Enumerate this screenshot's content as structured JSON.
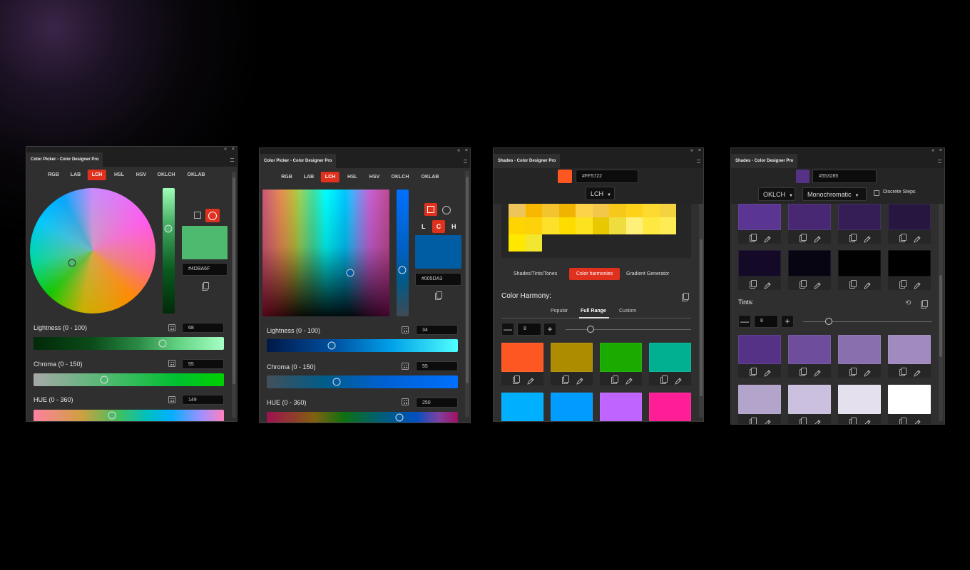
{
  "window_controls": {
    "collapse": "«",
    "close": "×"
  },
  "panel1": {
    "title": "Color Picker - Color Designer Pro",
    "tabs": [
      "RGB",
      "LAB",
      "LCH",
      "HSL",
      "HSV",
      "OKLCH",
      "OKLAB"
    ],
    "active_tab": "LCH",
    "shape_mode": "circle",
    "color_hex": "#4DBA6F",
    "hex_value": "#4DBA6F",
    "sliders": [
      {
        "label": "Lightness (0 - 100)",
        "value": "68"
      },
      {
        "label": "Chroma (0 - 150)",
        "value": "55"
      },
      {
        "label": "HUE (0 - 360)",
        "value": "149"
      }
    ]
  },
  "panel2": {
    "title": "Color Picker - Color Designer Pro",
    "tabs": [
      "RGB",
      "LAB",
      "LCH",
      "HSL",
      "HSV",
      "OKLCH",
      "OKLAB"
    ],
    "active_tab": "LCH",
    "shape_mode": "square",
    "axes": [
      "L",
      "C",
      "H"
    ],
    "active_axis": "C",
    "color_hex": "#005DA3",
    "hex_value": "#005DA3",
    "sliders": [
      {
        "label": "Lightness (0 - 100)",
        "value": "34"
      },
      {
        "label": "Chroma (0 - 150)",
        "value": "55"
      },
      {
        "label": "HUE (0 - 360)",
        "value": "250"
      }
    ]
  },
  "panel3": {
    "title": "Shades - Color Designer Pro",
    "base_color": "#FF5722",
    "hex_value": "#FF5722",
    "mode": "LCH",
    "palette_grid": [
      [
        "#eec55a",
        "#f9b800",
        "#f3c330",
        "#f0b400",
        "#fdd34a",
        "#f3c74c",
        "#f5c81a",
        "#ffd21a",
        "#fed930",
        "#f5d240"
      ],
      [
        "#ffd400",
        "#fdd20a",
        "#fde02a",
        "#ffdc00",
        "#fde31f",
        "#e8c800",
        "#efdd40",
        "#fff07a",
        "#ffe840",
        "#ffec55"
      ],
      [
        "#ffe800",
        "#f2e630"
      ]
    ],
    "tabs": [
      "Shades/Tints/Tones",
      "Color harmonies",
      "Gradient Generator"
    ],
    "active_tab": "Color harmonies",
    "section_title": "Color Harmony:",
    "subtabs": [
      "Popular",
      "Full Range",
      "Custom"
    ],
    "active_subtab": "Full Range",
    "count": "8",
    "minus": "—",
    "plus": "+",
    "swatches": [
      "#ff5722",
      "#ae8c00",
      "#1aab00",
      "#00b090",
      "#00b0ff",
      "#009cff",
      "#c064ff",
      "#ff1e96"
    ]
  },
  "panel4": {
    "title": "Shades - Color Designer Pro",
    "base_color": "#553285",
    "hex_value": "#553285",
    "mode": "OKLCH",
    "scheme": "Monochromatic",
    "discrete_steps_label": "Discrete Steps",
    "discrete_steps_checked": false,
    "shades": [
      "#5a3591",
      "#482872",
      "#351e56",
      "#261640",
      "#140a28",
      "#070512",
      "#010101",
      "#000000"
    ],
    "tints_title": "Tints:",
    "tints_count": "8",
    "minus": "—",
    "plus": "+",
    "tints": [
      "#553285",
      "#6e4e9c",
      "#8a6fae",
      "#a08ac0",
      "#b3a4cb",
      "#cbc1de",
      "#e4e0ee",
      "#ffffff"
    ]
  }
}
